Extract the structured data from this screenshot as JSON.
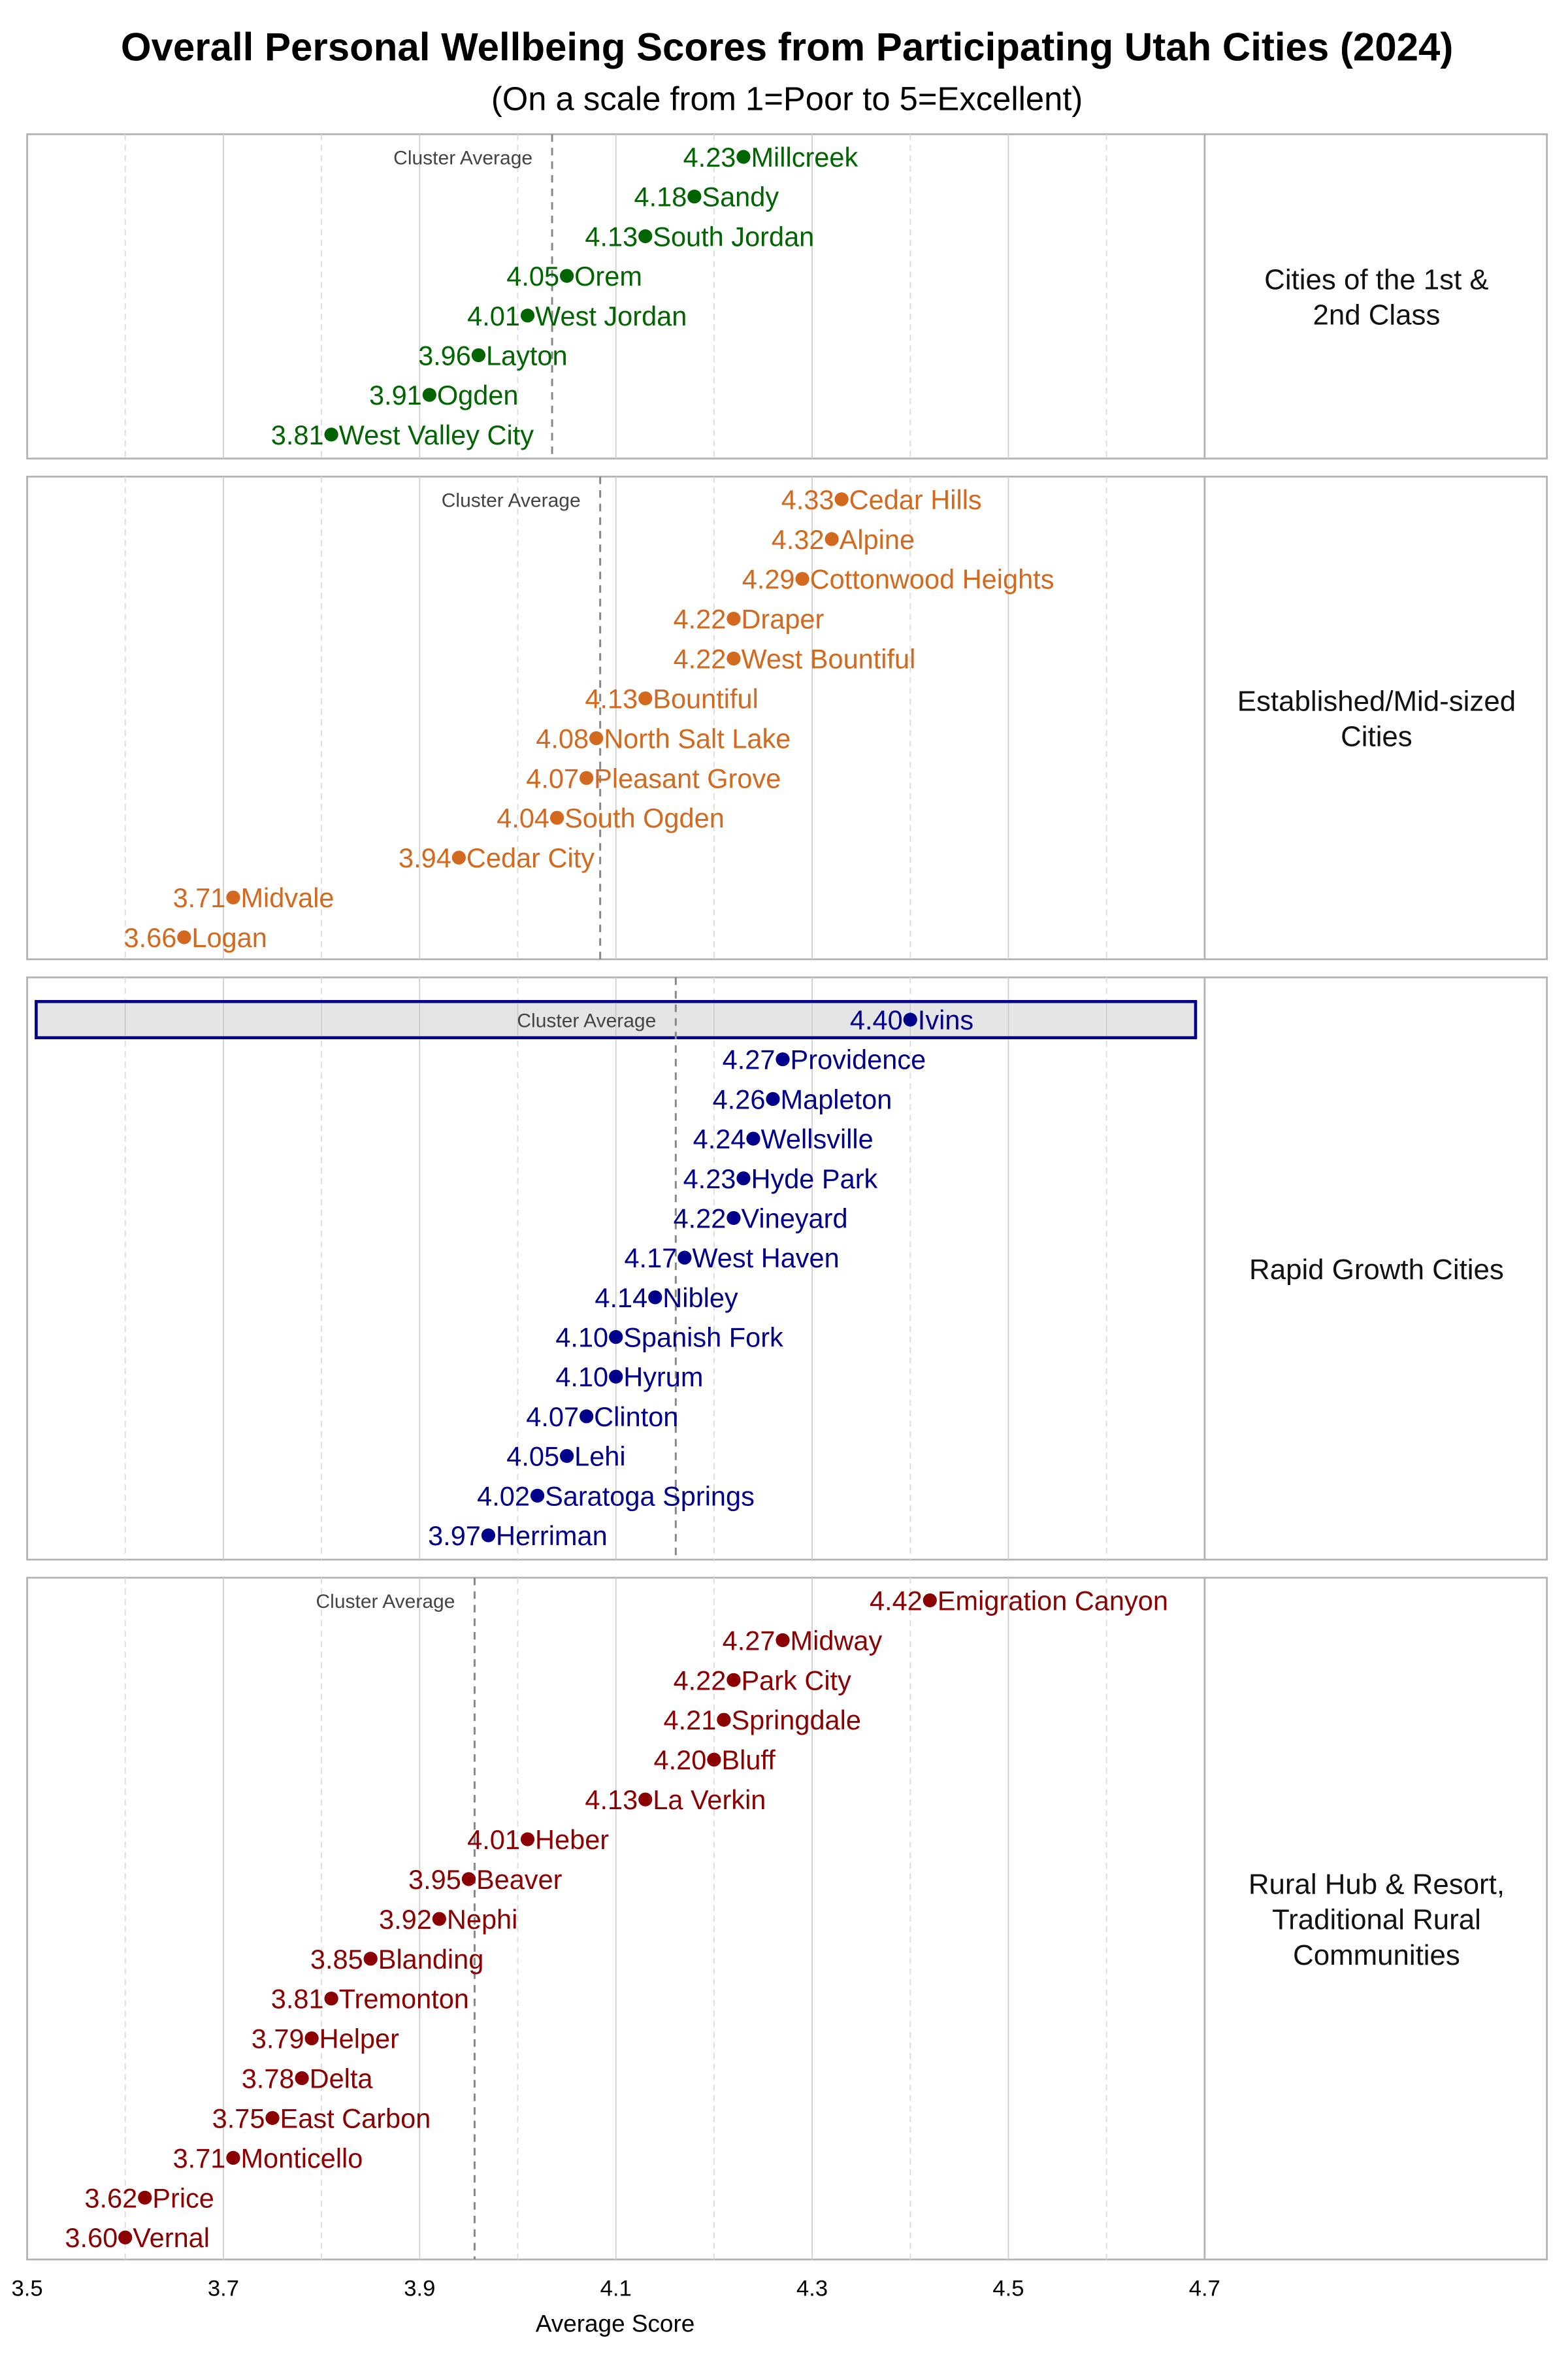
{
  "chart_data": {
    "type": "scatter",
    "title": "Overall Personal Wellbeing Scores from Participating Utah Cities (2024)",
    "subtitle": "(On a scale from 1=Poor to 5=Excellent)",
    "xlabel": "Average Score",
    "xlim": [
      3.5,
      4.7
    ],
    "xticks": [
      "3.5",
      "3.7",
      "3.9",
      "4.1",
      "4.3",
      "4.5",
      "4.7"
    ],
    "grid": true,
    "avg_label": "Cluster Average",
    "panels": [
      {
        "name": "Cities of the 1st & 2nd Class",
        "strip_lines": [
          "Cities of the 1st &",
          "2nd Class"
        ],
        "color": "#006400",
        "cluster_average": 4.035,
        "cities": [
          {
            "city": "Millcreek",
            "value": "4.23"
          },
          {
            "city": "Sandy",
            "value": "4.18"
          },
          {
            "city": "South Jordan",
            "value": "4.13"
          },
          {
            "city": "Orem",
            "value": "4.05"
          },
          {
            "city": "West Jordan",
            "value": "4.01"
          },
          {
            "city": "Layton",
            "value": "3.96"
          },
          {
            "city": "Ogden",
            "value": "3.91"
          },
          {
            "city": "West Valley City",
            "value": "3.81"
          }
        ]
      },
      {
        "name": "Established/Mid-sized Cities",
        "strip_lines": [
          "Established/Mid-sized",
          "Cities"
        ],
        "color": "#d2691e",
        "cluster_average": 4.084,
        "cities": [
          {
            "city": "Cedar Hills",
            "value": "4.33"
          },
          {
            "city": "Alpine",
            "value": "4.32"
          },
          {
            "city": "Cottonwood Heights",
            "value": "4.29"
          },
          {
            "city": "Draper",
            "value": "4.22"
          },
          {
            "city": "West Bountiful",
            "value": "4.22"
          },
          {
            "city": "Bountiful",
            "value": "4.13"
          },
          {
            "city": "North Salt Lake",
            "value": "4.08"
          },
          {
            "city": "Pleasant Grove",
            "value": "4.07"
          },
          {
            "city": "South Ogden",
            "value": "4.04"
          },
          {
            "city": "Cedar City",
            "value": "3.94"
          },
          {
            "city": "Midvale",
            "value": "3.71"
          },
          {
            "city": "Logan",
            "value": "3.66"
          }
        ]
      },
      {
        "name": "Rapid Growth Cities",
        "strip_lines": [
          "Rapid Growth Cities"
        ],
        "color": "#00008b",
        "cluster_average": 4.161,
        "highlight": "Ivins",
        "cities": [
          {
            "city": "Ivins",
            "value": "4.40"
          },
          {
            "city": "Providence",
            "value": "4.27"
          },
          {
            "city": "Mapleton",
            "value": "4.26"
          },
          {
            "city": "Wellsville",
            "value": "4.24"
          },
          {
            "city": "Hyde Park",
            "value": "4.23"
          },
          {
            "city": "Vineyard",
            "value": "4.22"
          },
          {
            "city": "West Haven",
            "value": "4.17"
          },
          {
            "city": "Nibley",
            "value": "4.14"
          },
          {
            "city": "Spanish Fork",
            "value": "4.10"
          },
          {
            "city": "Hyrum",
            "value": "4.10"
          },
          {
            "city": "Clinton",
            "value": "4.07"
          },
          {
            "city": "Lehi",
            "value": "4.05"
          },
          {
            "city": "Saratoga Springs",
            "value": "4.02"
          },
          {
            "city": "Herriman",
            "value": "3.97"
          }
        ]
      },
      {
        "name": "Rural Hub & Resort, Traditional Rural Communities",
        "strip_lines": [
          "Rural Hub & Resort,",
          "Traditional Rural",
          "Communities"
        ],
        "color": "#8b0000",
        "cluster_average": 3.956,
        "cities": [
          {
            "city": "Emigration Canyon",
            "value": "4.42"
          },
          {
            "city": "Midway",
            "value": "4.27"
          },
          {
            "city": "Park City",
            "value": "4.22"
          },
          {
            "city": "Springdale",
            "value": "4.21"
          },
          {
            "city": "Bluff",
            "value": "4.20"
          },
          {
            "city": "La Verkin",
            "value": "4.13"
          },
          {
            "city": "Heber",
            "value": "4.01"
          },
          {
            "city": "Beaver",
            "value": "3.95"
          },
          {
            "city": "Nephi",
            "value": "3.92"
          },
          {
            "city": "Blanding",
            "value": "3.85"
          },
          {
            "city": "Tremonton",
            "value": "3.81"
          },
          {
            "city": "Helper",
            "value": "3.79"
          },
          {
            "city": "Delta",
            "value": "3.78"
          },
          {
            "city": "East Carbon",
            "value": "3.75"
          },
          {
            "city": "Monticello",
            "value": "3.71"
          },
          {
            "city": "Price",
            "value": "3.62"
          },
          {
            "city": "Vernal",
            "value": "3.60"
          }
        ]
      }
    ]
  }
}
